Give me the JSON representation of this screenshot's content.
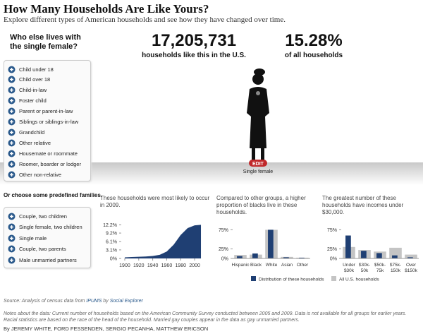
{
  "header": {
    "title": "How Many Households Are Like Yours?",
    "subtitle": "Explore different types of American households and see how they have changed over time."
  },
  "question": "Who else lives with the single female?",
  "stats": {
    "count": "17,205,731",
    "count_label": "households like this in the U.S.",
    "share": "15.28%",
    "share_label": "of all households"
  },
  "figure": {
    "edit": "EDIT",
    "label": "Single female"
  },
  "options": [
    "Child under 18",
    "Child over 18",
    "Child-in-law",
    "Foster child",
    "Parent or parent-in-law",
    "Siblings or siblings-in-law",
    "Grandchild",
    "Other relative",
    "Housemate or roommate",
    "Roomer, boarder or lodger",
    "Other non-relative"
  ],
  "predefined_title": "Or choose some predefined families.",
  "predefined": [
    "Couple, two children",
    "Single female, two children",
    "Single male",
    "Couple, two parents",
    "Male unmarried partners"
  ],
  "charts": [
    {
      "type": "area",
      "title": "These households were most likely to occur in 2009.",
      "color": "#1f3f73",
      "x": [
        1900,
        1910,
        1920,
        1930,
        1940,
        1950,
        1960,
        1970,
        1980,
        1990,
        2000,
        2009
      ],
      "values": [
        0.4,
        0.5,
        0.6,
        0.7,
        0.9,
        1.3,
        2.5,
        5.0,
        8.5,
        11.0,
        12.0,
        12.2
      ],
      "xlim": [
        1895,
        2012
      ],
      "xticks": [
        1900,
        1920,
        1940,
        1960,
        1980,
        2000
      ],
      "ylim": [
        0,
        12.8
      ],
      "yticks": [
        {
          "value": 0,
          "label": "0%"
        },
        {
          "value": 3.1,
          "label": "3.1%"
        },
        {
          "value": 6.1,
          "label": "6.1%"
        },
        {
          "value": 9.2,
          "label": "9.2%"
        },
        {
          "value": 12.2,
          "label": "12.2%"
        }
      ]
    },
    {
      "type": "bar",
      "title": "Compared to other groups, a higher proportion of blacks live in these households.",
      "categories": [
        [
          "Hispanic"
        ],
        [
          "Black"
        ],
        [
          "White"
        ],
        [
          "Asian"
        ],
        [
          "Other"
        ]
      ],
      "series": [
        {
          "name": "Distribution of these households",
          "color": "#1f3f73",
          "values": [
            6,
            13,
            75,
            3,
            2
          ]
        },
        {
          "name": "All U.S. households",
          "color": "#c4c4c4",
          "values": [
            9,
            10,
            75,
            4,
            2
          ]
        }
      ],
      "ylim": [
        0,
        85
      ],
      "yticks": [
        {
          "value": 0,
          "label": "0%"
        },
        {
          "value": 25,
          "label": "25%"
        },
        {
          "value": 75,
          "label": "75%"
        }
      ]
    },
    {
      "type": "bar",
      "title": "The greatest number of these households have incomes under $30,000.",
      "categories": [
        [
          "Under",
          "$30k"
        ],
        [
          "$30k-",
          "50k"
        ],
        [
          "$50k-",
          "75k"
        ],
        [
          "$75k-",
          "150k"
        ],
        [
          "Over",
          "$150k"
        ]
      ],
      "series": [
        {
          "color": "#1f3f73",
          "values": [
            60,
            20,
            14,
            8,
            3
          ]
        },
        {
          "color": "#c4c4c4",
          "values": [
            30,
            22,
            18,
            28,
            10
          ]
        }
      ],
      "ylim": [
        0,
        85
      ],
      "yticks": [
        {
          "value": 0,
          "label": "0%"
        },
        {
          "value": 25,
          "label": "25%"
        },
        {
          "value": 75,
          "label": "75%"
        }
      ]
    }
  ],
  "source": {
    "prefix": "Source: Analysis of census data from",
    "link1": "IPUMS",
    "by": "by",
    "link2": "Social Explorer"
  },
  "notes": "Notes about the data: Current number of households based on the American Community Survey conducted between 2005 and 2009. Data is not available for all groups for earlier years. Racial statistics are based on the race of the head of the household. Married gay couples appear in the data as gay unmarried partners.",
  "byline": "By JEREMY WHITE, FORD FESSENDEN, SERGIO PECANHA, MATTHEW ERICSON"
}
